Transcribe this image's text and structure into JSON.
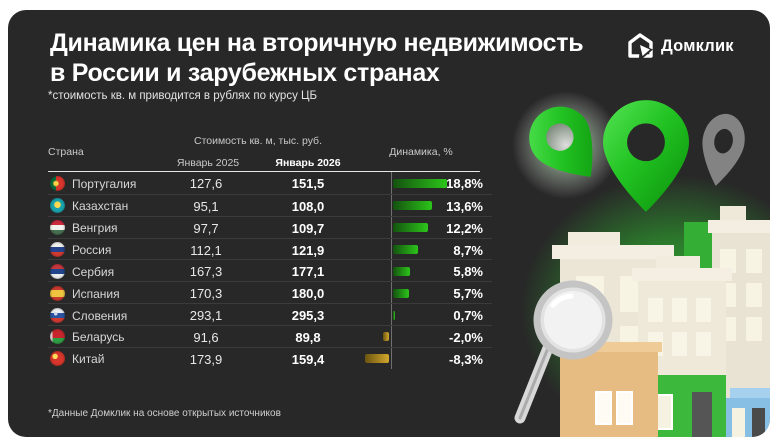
{
  "header": {
    "title_line1": "Динамика цен на вторичную недвижимость",
    "title_line2": "в России и зарубежных странах",
    "subtitle": "*стоимость кв. м приводится в рублях по курсу ЦБ",
    "logo_text": "Домклик"
  },
  "table": {
    "col_country": "Страна",
    "col_price_group": "Стоимость кв. м, тыс. руб.",
    "col_jan2025": "Январь 2025",
    "col_jan2026": "Январь 2026",
    "col_dynamics": "Динамика, %",
    "rows": [
      {
        "country": "Португалия",
        "jan2025": "127,6",
        "jan2026": "151,5",
        "dynamics": "18,8%",
        "dynamics_value": 18.8,
        "flag_bg": "radial-gradient(circle at 40% 50%, #ffd34d 0 2.2px, #c9a227 2.2px 2.8px, transparent 3px), linear-gradient(90deg,#0a6b3c 0 40%, #d8352c 40%)"
      },
      {
        "country": "Казахстан",
        "jan2025": "95,1",
        "jan2026": "108,0",
        "dynamics": "13,6%",
        "dynamics_value": 13.6,
        "flag_bg": "radial-gradient(circle at 50% 45%, #ffd94f 0 3px, transparent 3.5px), linear-gradient(#1aa3ae,#1aa3ae)"
      },
      {
        "country": "Венгрия",
        "jan2025": "97,7",
        "jan2026": "109,7",
        "dynamics": "12,2%",
        "dynamics_value": 12.2,
        "flag_bg": "linear-gradient(180deg,#cd2a3e 0 34%, #f1f1ee 34% 67%, #477050 67%)"
      },
      {
        "country": "Россия",
        "jan2025": "112,1",
        "jan2026": "121,9",
        "dynamics": "8,7%",
        "dynamics_value": 8.7,
        "flag_bg": "linear-gradient(180deg,#f1f1ee 0 34%, #26428b 34% 67%, #d03a31 67%)"
      },
      {
        "country": "Сербия",
        "jan2025": "167,3",
        "jan2026": "177,1",
        "dynamics": "5,8%",
        "dynamics_value": 5.8,
        "flag_bg": "linear-gradient(180deg,#c4383e 0 34%, #20458a 34% 67%, #edeef0 67%)"
      },
      {
        "country": "Испания",
        "jan2025": "170,3",
        "jan2026": "180,0",
        "dynamics": "5,7%",
        "dynamics_value": 5.7,
        "flag_bg": "linear-gradient(180deg,#c8392e 0 28%, #eec33f 28% 72%, #c8392e 72%)"
      },
      {
        "country": "Словения",
        "jan2025": "293,1",
        "jan2026": "295,3",
        "dynamics": "0,7%",
        "dynamics_value": 0.7,
        "flag_bg": "radial-gradient(circle at 38% 38%, #cfd8ea 0 1.6px, transparent 2px), linear-gradient(180deg,#eef0f2 0 34%, #2b55a2 34% 67%, #d03a31 67%)"
      },
      {
        "country": "Беларусь",
        "jan2025": "91,6",
        "jan2026": "89,8",
        "dynamics": "-2,0%",
        "dynamics_value": -2.0,
        "flag_bg": "linear-gradient(90deg,#e8d8d6 0 16%, transparent 16%), linear-gradient(180deg,#c6262c 0 60%, #2e9e44 60%)"
      },
      {
        "country": "Китай",
        "jan2025": "173,9",
        "jan2026": "159,4",
        "dynamics": "-8,3%",
        "dynamics_value": -8.3,
        "flag_bg": "radial-gradient(circle at 34% 36%, #ffde57 0 2.4px, transparent 2.9px), linear-gradient(#d6362b,#d6362b)"
      }
    ]
  },
  "footnote": "*Данные Домклик на основе открытых источников",
  "colors": {
    "card_background": "#282828",
    "positive_bar_start": "#14520f",
    "positive_bar_end": "#2cc51a",
    "negative_bar_start": "#6b5410",
    "negative_bar_end": "#d2a72c",
    "accent_green": "#2cc51a",
    "axis_line": "#8d8d8d"
  },
  "chart_data": {
    "type": "bar",
    "orientation": "horizontal",
    "title": "Динамика цен на вторичную недвижимость в России и зарубежных странах",
    "subtitle": "*стоимость кв. м приводится в рублях по курсу ЦБ",
    "categories": [
      "Португалия",
      "Казахстан",
      "Венгрия",
      "Россия",
      "Сербия",
      "Испания",
      "Словения",
      "Беларусь",
      "Китай"
    ],
    "series": [
      {
        "name": "Январь 2025, тыс. руб.",
        "values": [
          127.6,
          95.1,
          97.7,
          112.1,
          167.3,
          170.3,
          293.1,
          91.6,
          173.9
        ]
      },
      {
        "name": "Январь 2026, тыс. руб.",
        "values": [
          151.5,
          108.0,
          109.7,
          121.9,
          177.1,
          180.0,
          295.3,
          89.8,
          159.4
        ]
      },
      {
        "name": "Динамика, %",
        "values": [
          18.8,
          13.6,
          12.2,
          8.7,
          5.8,
          5.7,
          0.7,
          -2.0,
          -8.3
        ]
      }
    ],
    "bar_series_shown_as_bars": "Динамика, %",
    "xlim": [
      -10,
      20
    ],
    "grid": false,
    "legend_position": "none",
    "positive_color": "green gradient",
    "negative_color": "gold gradient"
  }
}
